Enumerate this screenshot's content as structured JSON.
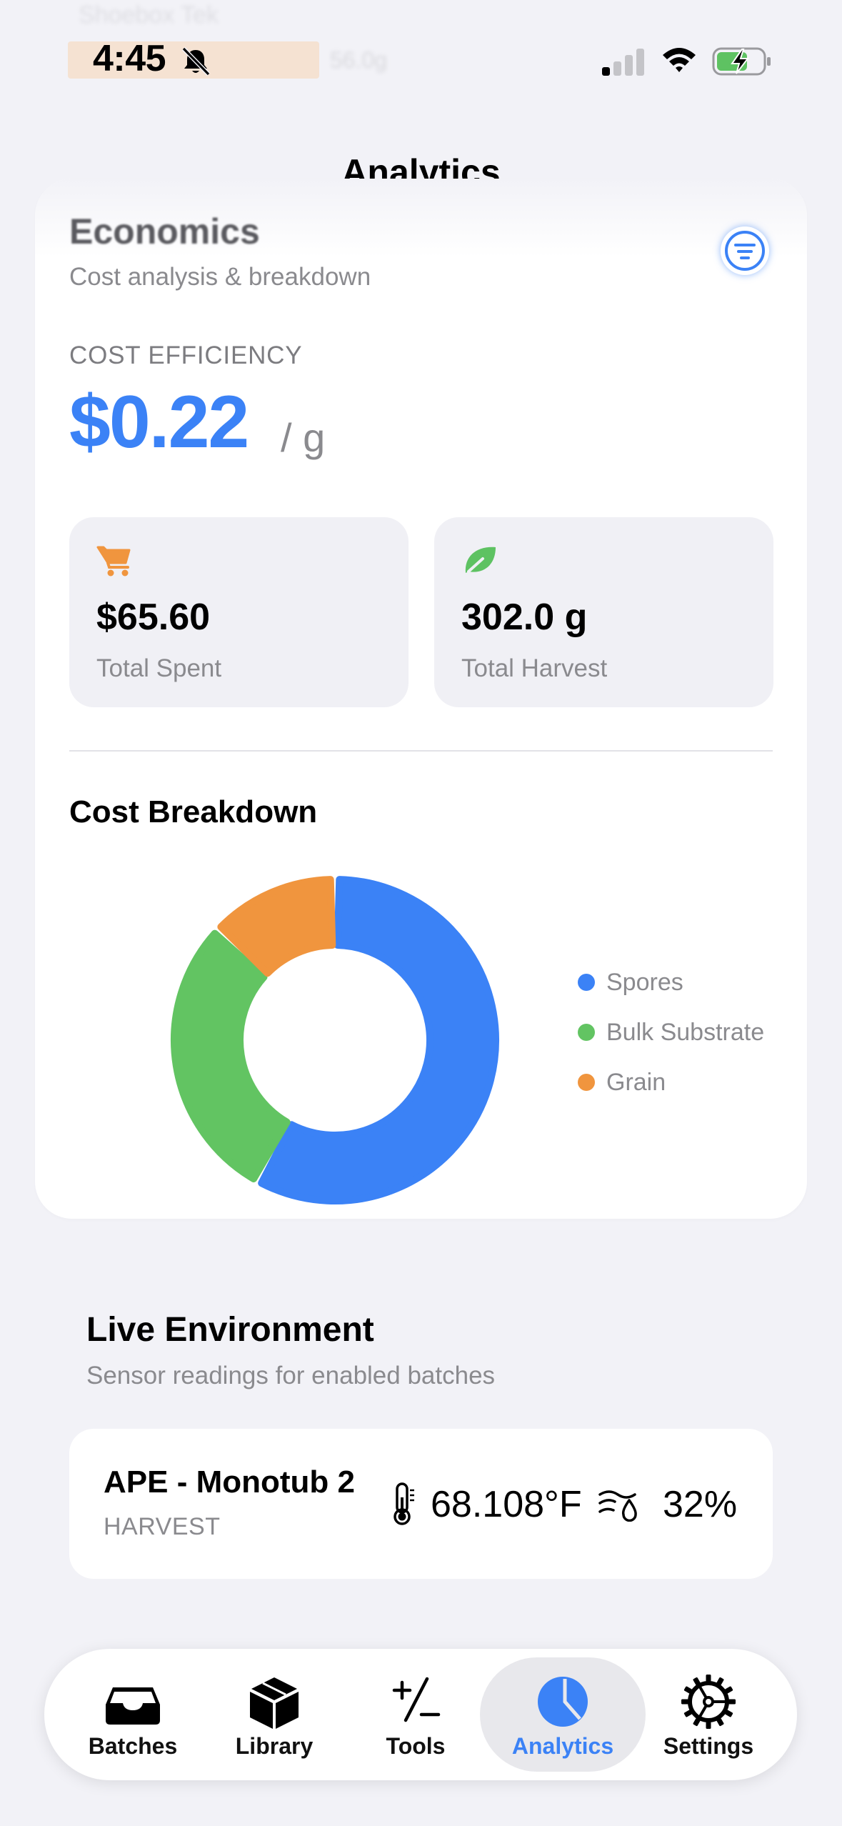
{
  "status_bar": {
    "time": "4:45",
    "ghost_task": "Shoebox Tek",
    "ghost_weight": "56.0g"
  },
  "nav": {
    "title": "Analytics"
  },
  "economics": {
    "title": "Economics",
    "subtitle": "Cost analysis & breakdown",
    "efficiency_label": "COST EFFICIENCY",
    "efficiency_value": "$0.22",
    "efficiency_unit": "/ g",
    "stats": [
      {
        "value": "$65.60",
        "label": "Total Spent",
        "icon": "cart-icon",
        "color": "#f0953e"
      },
      {
        "value": "302.0 g",
        "label": "Total Harvest",
        "icon": "leaf-icon",
        "color": "#5ec262"
      }
    ],
    "breakdown_title": "Cost Breakdown",
    "accent_color": "#3b82f6"
  },
  "chart_data": {
    "type": "pie",
    "categories": [
      "Spores",
      "Bulk Substrate",
      "Grain"
    ],
    "values": [
      58,
      29,
      13
    ],
    "colors": [
      "#3b82f6",
      "#62c462",
      "#f0953e"
    ],
    "donut": true,
    "legend_position": "right"
  },
  "environment": {
    "title": "Live Environment",
    "subtitle": "Sensor readings for enabled batches",
    "batches": [
      {
        "name": "APE - Monotub 2",
        "stage": "HARVEST",
        "temperature": "68.108°F",
        "humidity": "32%"
      }
    ]
  },
  "tab_bar": {
    "active": "Analytics",
    "tabs": [
      {
        "label": "Batches",
        "icon": "tray-icon"
      },
      {
        "label": "Library",
        "icon": "box-icon"
      },
      {
        "label": "Tools",
        "icon": "plus-slash-minus-icon"
      },
      {
        "label": "Analytics",
        "icon": "pie-chart-icon"
      },
      {
        "label": "Settings",
        "icon": "gear-icon"
      }
    ]
  }
}
